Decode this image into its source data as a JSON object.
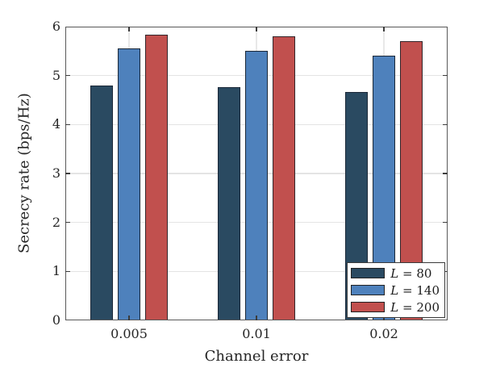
{
  "chart_data": {
    "type": "bar",
    "title": "",
    "xlabel": "Channel error",
    "ylabel": "Secrecy rate (bps/Hz)",
    "categories": [
      "0.005",
      "0.01",
      "0.02"
    ],
    "series": [
      {
        "name": "L = 80",
        "legend_var": "L",
        "legend_rest": " = 80",
        "color": "#2a4a61",
        "edge_color": "#1b2838",
        "values": [
          4.8,
          4.76,
          4.66
        ]
      },
      {
        "name": "L = 140",
        "legend_var": "L",
        "legend_rest": " = 140",
        "color": "#4e81bc",
        "edge_color": "#1b2838",
        "values": [
          5.55,
          5.51,
          5.41
        ]
      },
      {
        "name": "L = 200",
        "legend_var": "L",
        "legend_rest": " = 200",
        "color": "#c1504e",
        "edge_color": "#33262b",
        "values": [
          5.84,
          5.8,
          5.7
        ]
      }
    ],
    "ylim": [
      0,
      6
    ],
    "yticks": [
      0,
      1,
      2,
      3,
      4,
      5,
      6
    ],
    "ytick_labels": [
      "0",
      "1",
      "2",
      "3",
      "4",
      "5",
      "6"
    ],
    "grid": true,
    "legend_position": "bottom-right",
    "axis_color": "#595959",
    "grid_color": "#e4e4e4",
    "background_color": "#ffffff"
  }
}
